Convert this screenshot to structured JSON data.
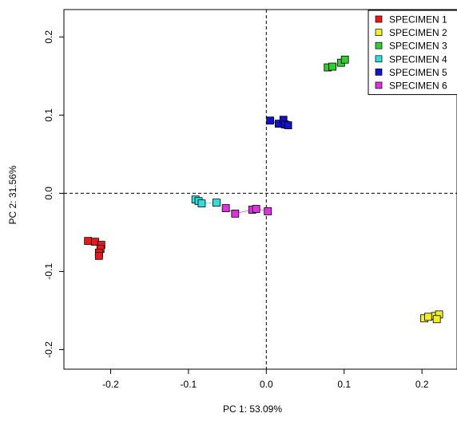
{
  "chart_data": {
    "type": "scatter",
    "xlabel": "PC 1: 53.09%",
    "ylabel": "PC 2: 31.56%",
    "xlim": [
      -0.26,
      0.245
    ],
    "ylim": [
      -0.225,
      0.235
    ],
    "x_ticks": [
      -0.2,
      -0.1,
      0.0,
      0.1,
      0.2
    ],
    "x_tick_labels": [
      "-0.2",
      "-0.1",
      "0.0",
      "0.1",
      "0.2"
    ],
    "y_ticks": [
      -0.2,
      -0.1,
      0.0,
      0.1,
      0.2
    ],
    "y_tick_labels": [
      "-0.2",
      "-0.1",
      "0.0",
      "0.1",
      "0.2"
    ],
    "reference_lines": {
      "x": 0,
      "y": 0,
      "style": "dashed"
    },
    "legend_position": "top-right",
    "series": [
      {
        "name": "SPECIMEN 1",
        "color": "#e41a1c",
        "points": [
          [
            -0.229,
            -0.061
          ],
          [
            -0.22,
            -0.062
          ],
          [
            -0.212,
            -0.066
          ],
          [
            -0.213,
            -0.071
          ],
          [
            -0.215,
            -0.076
          ],
          [
            -0.215,
            -0.08
          ]
        ]
      },
      {
        "name": "SPECIMEN 2",
        "color": "#f0ef2a",
        "points": [
          [
            0.203,
            -0.16
          ],
          [
            0.208,
            -0.158
          ],
          [
            0.217,
            -0.157
          ],
          [
            0.222,
            -0.155
          ],
          [
            0.219,
            -0.161
          ]
        ]
      },
      {
        "name": "SPECIMEN 3",
        "color": "#33cc33",
        "points": [
          [
            0.079,
            0.161
          ],
          [
            0.085,
            0.162
          ],
          [
            0.096,
            0.167
          ],
          [
            0.101,
            0.171
          ]
        ]
      },
      {
        "name": "SPECIMEN 4",
        "color": "#33dddd",
        "points": [
          [
            -0.091,
            -0.008
          ],
          [
            -0.087,
            -0.01
          ],
          [
            -0.083,
            -0.013
          ],
          [
            -0.064,
            -0.012
          ]
        ]
      },
      {
        "name": "SPECIMEN 5",
        "color": "#1111cc",
        "points": [
          [
            0.005,
            0.093
          ],
          [
            0.016,
            0.089
          ],
          [
            0.022,
            0.094
          ],
          [
            0.024,
            0.088
          ],
          [
            0.028,
            0.087
          ]
        ]
      },
      {
        "name": "SPECIMEN 6",
        "color": "#dd33dd",
        "points": [
          [
            -0.052,
            -0.019
          ],
          [
            -0.04,
            -0.026
          ],
          [
            -0.018,
            -0.021
          ],
          [
            -0.013,
            -0.02
          ],
          [
            0.002,
            -0.023
          ]
        ]
      }
    ]
  }
}
